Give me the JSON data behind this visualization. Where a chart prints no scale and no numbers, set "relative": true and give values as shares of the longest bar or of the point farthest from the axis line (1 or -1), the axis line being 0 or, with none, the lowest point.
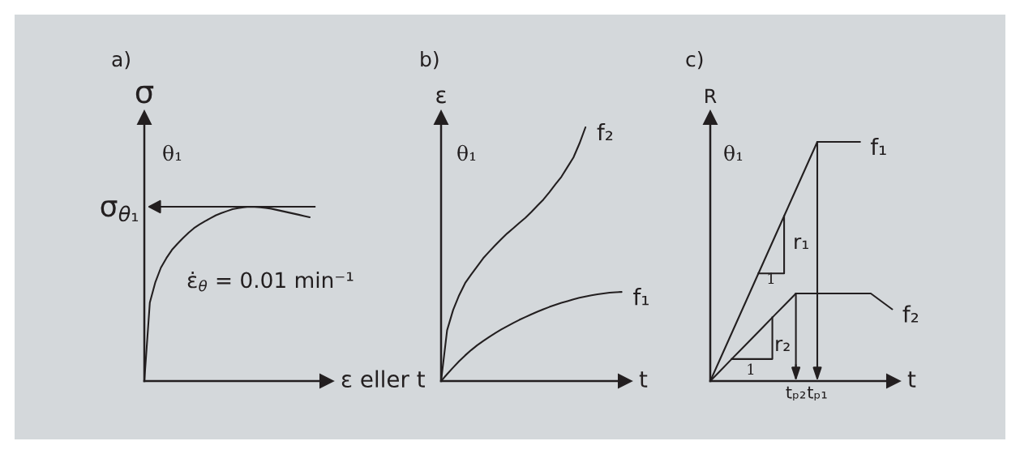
{
  "chart_data": [
    {
      "type": "line",
      "title": "a)",
      "xlabel": "ε eller t",
      "ylabel": "σ",
      "relative": true,
      "tick_labels": false,
      "categories": [
        null,
        null,
        null,
        null,
        null,
        null,
        null,
        null,
        null,
        null,
        null,
        null,
        null,
        null,
        null,
        null,
        null,
        null,
        null,
        null,
        null,
        null,
        null,
        null,
        null,
        null,
        null,
        null,
        null,
        null,
        null
      ],
      "series": [
        {
          "color": "#231f20",
          "values": [
            0,
            0.45,
            0.567,
            0.65,
            0.705,
            0.752,
            0.787,
            0.82,
            0.85,
            0.877,
            0.898,
            0.917,
            0.934,
            0.951,
            0.964,
            0.975,
            0.986,
            0.992,
            0.997,
            1.0,
            0.999,
            0.997,
            0.993,
            0.989,
            0.982,
            0.975,
            0.968,
            0.961,
            0.954,
            0.947,
            0.94
          ]
        }
      ],
      "ref_lines": [
        {
          "axis": "y",
          "value": 1,
          "label": "σ$_{θ₁}$"
        }
      ],
      "annotations": [
        "θ₁",
        "ε̇$_{θ}$ = 0.01 min⁻¹"
      ]
    },
    {
      "type": "line",
      "title": "b)",
      "xlabel": "t",
      "ylabel": "ε",
      "relative": true,
      "tick_labels": false,
      "categories": [
        null,
        null,
        null,
        null,
        null,
        null,
        null,
        null,
        null,
        null,
        null,
        null,
        null,
        null,
        null,
        null,
        null,
        null,
        null,
        null,
        null,
        null,
        null,
        null,
        null,
        null,
        null,
        null,
        null,
        null,
        null
      ],
      "series": [
        {
          "name": "f₂",
          "color": "#231f20",
          "values": [
            0,
            0.2,
            0.28,
            0.338,
            0.386,
            0.42,
            0.452,
            0.484,
            0.51,
            0.535,
            0.559,
            0.582,
            0.602,
            0.623,
            0.643,
            0.666,
            0.691,
            0.715,
            0.744,
            0.775,
            0.805,
            0.843,
            0.881,
            0.936,
            1.0,
            null,
            null,
            null,
            null,
            null,
            null
          ]
        },
        {
          "name": "f₁",
          "color": "#231f20",
          "values": [
            0,
            0.027,
            0.053,
            0.078,
            0.101,
            0.122,
            0.141,
            0.158,
            0.174,
            0.189,
            0.203,
            0.216,
            0.229,
            0.241,
            0.252,
            0.263,
            0.273,
            0.283,
            0.292,
            0.3,
            0.308,
            0.315,
            0.322,
            0.328,
            0.333,
            0.338,
            0.342,
            0.345,
            0.348,
            0.35,
            0.351
          ]
        }
      ],
      "annotations": [
        "θ₁"
      ]
    },
    {
      "type": "line",
      "title": "c)",
      "xlabel": "t",
      "ylabel": "R",
      "relative": true,
      "tick_labels": "x",
      "categories": [
        null,
        null,
        null,
        null,
        null,
        null,
        null,
        null,
        "tₚ₂",
        null,
        "tₚ₁",
        null,
        null,
        null,
        null,
        null,
        null,
        null
      ],
      "series": [
        {
          "name": "f₁",
          "color": "#231f20",
          "values": [
            0,
            0.1,
            0.2,
            0.3,
            0.4,
            0.5,
            0.6,
            0.7,
            0.8,
            0.9,
            1,
            1,
            1,
            1,
            1,
            null,
            null,
            null
          ]
        },
        {
          "name": "f₂",
          "color": "#231f20",
          "values": [
            0,
            0.046,
            0.092,
            0.137,
            0.183,
            0.229,
            0.275,
            0.32,
            0.366,
            0.366,
            0.366,
            0.366,
            0.366,
            0.366,
            0.366,
            0.366,
            0.333,
            0.3
          ]
        }
      ],
      "ref_lines": [
        {
          "axis": "x",
          "value": "tₚ₂"
        },
        {
          "axis": "x",
          "value": "tₚ₁"
        }
      ],
      "annotations": [
        "θ₁",
        "r₁",
        "1",
        "r₂",
        "1"
      ]
    }
  ]
}
